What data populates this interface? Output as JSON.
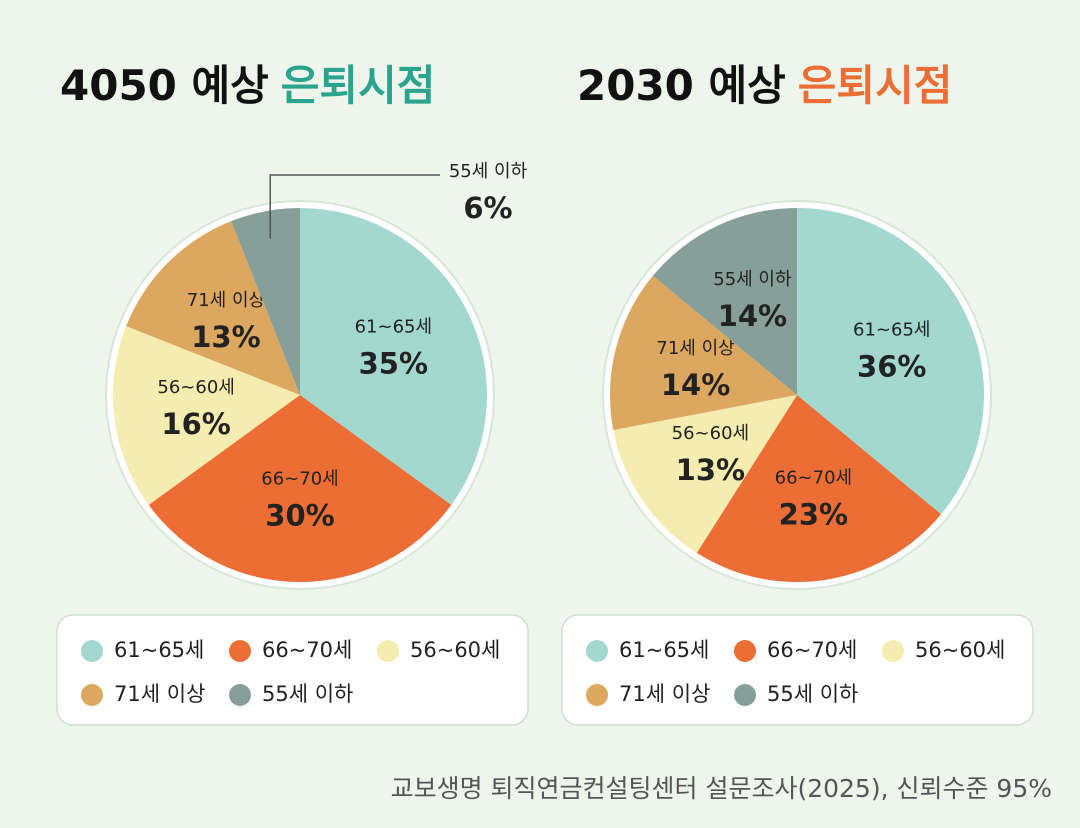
{
  "chart_data": [
    {
      "type": "pie",
      "title": "4050 예상",
      "title_highlight": "은퇴시점",
      "title_highlight_color": "#2aa38f",
      "categories": [
        "61~65세",
        "66~70세",
        "56~60세",
        "71세 이상",
        "55세 이하"
      ],
      "colors": [
        "#a2d8cd",
        "#ec6e35",
        "#f5ecb0",
        "#dca75e",
        "#869f98"
      ],
      "values": [
        35,
        30,
        16,
        13,
        6
      ],
      "value_labels": [
        "35%",
        "30%",
        "16%",
        "13%",
        "6%"
      ]
    },
    {
      "type": "pie",
      "title": "2030 예상",
      "title_highlight": "은퇴시점",
      "title_highlight_color": "#ec6e35",
      "categories": [
        "61~65세",
        "66~70세",
        "56~60세",
        "71세 이상",
        "55세 이하"
      ],
      "colors": [
        "#a2d8cd",
        "#ec6e35",
        "#f5ecb0",
        "#dca75e",
        "#869f98"
      ],
      "values": [
        36,
        23,
        13,
        14,
        14
      ],
      "value_labels": [
        "36%",
        "23%",
        "13%",
        "14%",
        "14%"
      ]
    }
  ],
  "source": "교보생명 퇴직연금컨설팅센터 설문조사(2025), 신뢰수준 95%"
}
